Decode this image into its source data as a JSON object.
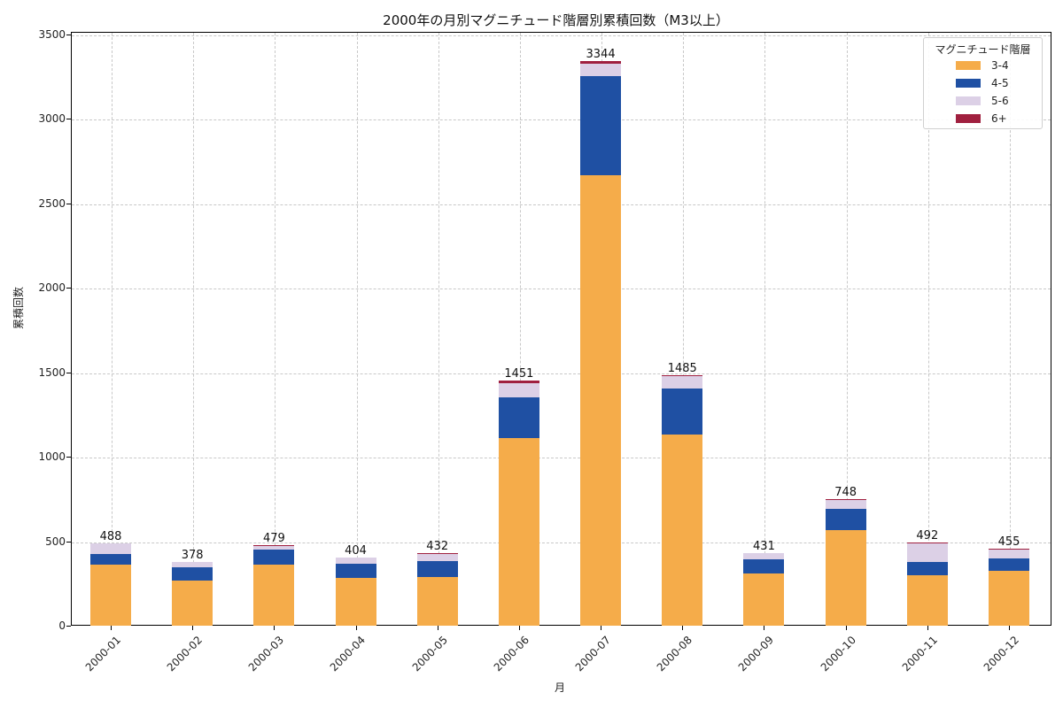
{
  "chart_data": {
    "type": "bar",
    "stacked": true,
    "title": "2000年の月別マグニチュード階層別累積回数（M3以上）",
    "xlabel": "月",
    "ylabel": "累積回数",
    "ylim": [
      0,
      3500
    ],
    "yticks": [
      0,
      500,
      1000,
      1500,
      2000,
      2500,
      3000,
      3500
    ],
    "grid": true,
    "legend_title": "マグニチュード階層",
    "legend_position": "upper right",
    "categories": [
      "2000-01",
      "2000-02",
      "2000-03",
      "2000-04",
      "2000-05",
      "2000-06",
      "2000-07",
      "2000-08",
      "2000-09",
      "2000-10",
      "2000-11",
      "2000-12"
    ],
    "series": [
      {
        "name": "3-4",
        "color": "#f5ac4a",
        "values": [
          362,
          267,
          362,
          283,
          288,
          1111,
          2667,
          1132,
          309,
          566,
          299,
          325
        ]
      },
      {
        "name": "4-5",
        "color": "#1f50a3",
        "values": [
          62,
          79,
          89,
          84,
          95,
          241,
          587,
          272,
          84,
          126,
          78,
          73
        ]
      },
      {
        "name": "5-6",
        "color": "#dcd0e6",
        "values": [
          64,
          32,
          25,
          37,
          46,
          84,
          72,
          71,
          38,
          50,
          108,
          52
        ]
      },
      {
        "name": "6+",
        "color": "#a0203f",
        "values": [
          0,
          0,
          3,
          0,
          3,
          15,
          18,
          10,
          0,
          6,
          7,
          5
        ]
      }
    ],
    "totals": [
      488,
      378,
      479,
      404,
      432,
      1451,
      3344,
      1485,
      431,
      748,
      492,
      455
    ]
  },
  "labels": {
    "title": "2000年の月別マグニチュード階層別累積回数（M3以上）",
    "xlabel": "月",
    "ylabel": "累積回数",
    "legend_title": "マグニチュード階層"
  }
}
